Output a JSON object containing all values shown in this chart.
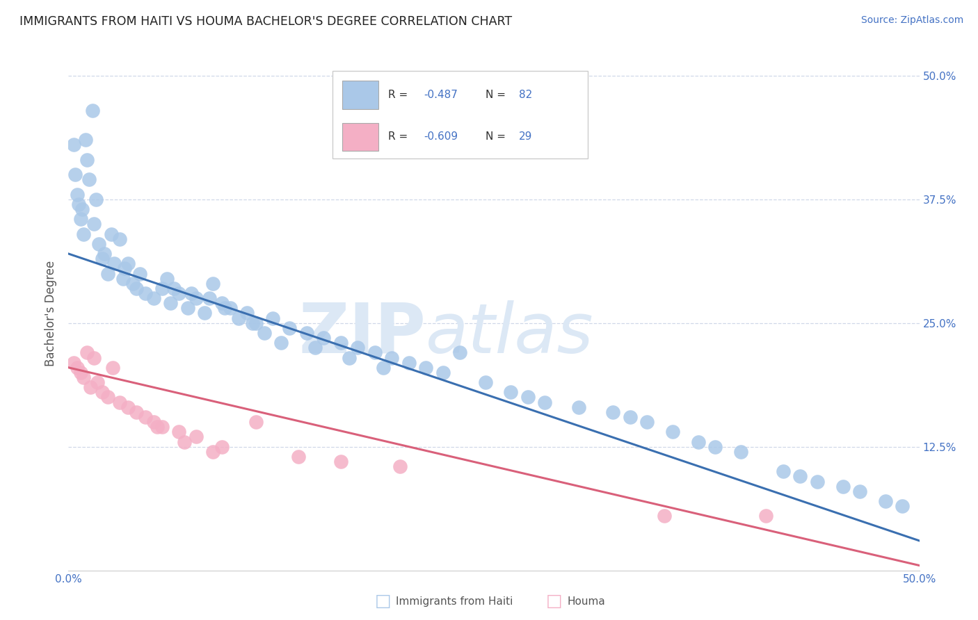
{
  "title": "IMMIGRANTS FROM HAITI VS HOUMA BACHELOR'S DEGREE CORRELATION CHART",
  "source": "Source: ZipAtlas.com",
  "ylabel": "Bachelor's Degree",
  "xlim": [
    0,
    50
  ],
  "ylim": [
    0,
    52
  ],
  "legend_label1": "Immigrants from Haiti",
  "legend_label2": "Houma",
  "blue_r": "R = -0.487",
  "blue_n": "N = 82",
  "pink_r": "R = -0.609",
  "pink_n": "N = 29",
  "blue_scatter_color": "#aac8e8",
  "pink_scatter_color": "#f4afc5",
  "blue_line_color": "#3a6fb0",
  "pink_line_color": "#d9607a",
  "title_color": "#222222",
  "source_color": "#4472c4",
  "axis_label_color": "#555555",
  "right_tick_color": "#4472c4",
  "bottom_tick_color": "#4472c4",
  "background_color": "#ffffff",
  "grid_color": "#d0d8e8",
  "watermark_zip_color": "#dce8f5",
  "watermark_atlas_color": "#dce8f5",
  "blue_scatter_x": [
    0.3,
    0.4,
    0.5,
    0.6,
    0.7,
    0.8,
    0.9,
    1.0,
    1.1,
    1.2,
    1.4,
    1.5,
    1.6,
    1.8,
    2.0,
    2.1,
    2.3,
    2.5,
    2.7,
    3.0,
    3.2,
    3.5,
    3.8,
    4.0,
    4.5,
    5.0,
    5.5,
    6.0,
    6.5,
    7.0,
    7.5,
    8.0,
    8.5,
    9.0,
    9.5,
    10.0,
    10.5,
    11.0,
    12.0,
    13.0,
    14.0,
    15.0,
    16.0,
    17.0,
    18.0,
    19.0,
    20.0,
    21.0,
    22.0,
    23.0,
    24.5,
    26.0,
    27.0,
    28.0,
    30.0,
    32.0,
    33.0,
    34.0,
    35.5,
    37.0,
    38.0,
    39.5,
    42.0,
    43.0,
    44.0,
    45.5,
    46.5,
    48.0,
    49.0,
    3.3,
    4.2,
    5.8,
    6.2,
    7.2,
    8.3,
    9.2,
    10.8,
    11.5,
    12.5,
    14.5,
    16.5,
    18.5
  ],
  "blue_scatter_y": [
    43.0,
    40.0,
    38.0,
    37.0,
    35.5,
    36.5,
    34.0,
    43.5,
    41.5,
    39.5,
    46.5,
    35.0,
    37.5,
    33.0,
    31.5,
    32.0,
    30.0,
    34.0,
    31.0,
    33.5,
    29.5,
    31.0,
    29.0,
    28.5,
    28.0,
    27.5,
    28.5,
    27.0,
    28.0,
    26.5,
    27.5,
    26.0,
    29.0,
    27.0,
    26.5,
    25.5,
    26.0,
    25.0,
    25.5,
    24.5,
    24.0,
    23.5,
    23.0,
    22.5,
    22.0,
    21.5,
    21.0,
    20.5,
    20.0,
    22.0,
    19.0,
    18.0,
    17.5,
    17.0,
    16.5,
    16.0,
    15.5,
    15.0,
    14.0,
    13.0,
    12.5,
    12.0,
    10.0,
    9.5,
    9.0,
    8.5,
    8.0,
    7.0,
    6.5,
    30.5,
    30.0,
    29.5,
    28.5,
    28.0,
    27.5,
    26.5,
    25.0,
    24.0,
    23.0,
    22.5,
    21.5,
    20.5
  ],
  "pink_scatter_x": [
    0.3,
    0.5,
    0.7,
    0.9,
    1.1,
    1.3,
    1.5,
    1.7,
    2.0,
    2.3,
    2.6,
    3.0,
    3.5,
    4.0,
    4.5,
    5.0,
    5.5,
    6.5,
    7.5,
    9.0,
    11.0,
    13.5,
    16.0,
    19.5,
    5.2,
    6.8,
    8.5,
    35.0,
    41.0
  ],
  "pink_scatter_y": [
    21.0,
    20.5,
    20.0,
    19.5,
    22.0,
    18.5,
    21.5,
    19.0,
    18.0,
    17.5,
    20.5,
    17.0,
    16.5,
    16.0,
    15.5,
    15.0,
    14.5,
    14.0,
    13.5,
    12.5,
    15.0,
    11.5,
    11.0,
    10.5,
    14.5,
    13.0,
    12.0,
    5.5,
    5.5
  ],
  "blue_line_x0": 0,
  "blue_line_y0": 32.0,
  "blue_line_x1": 50,
  "blue_line_y1": 3.0,
  "pink_line_x0": 0,
  "pink_line_y0": 20.5,
  "pink_line_x1": 50,
  "pink_line_y1": 0.5
}
